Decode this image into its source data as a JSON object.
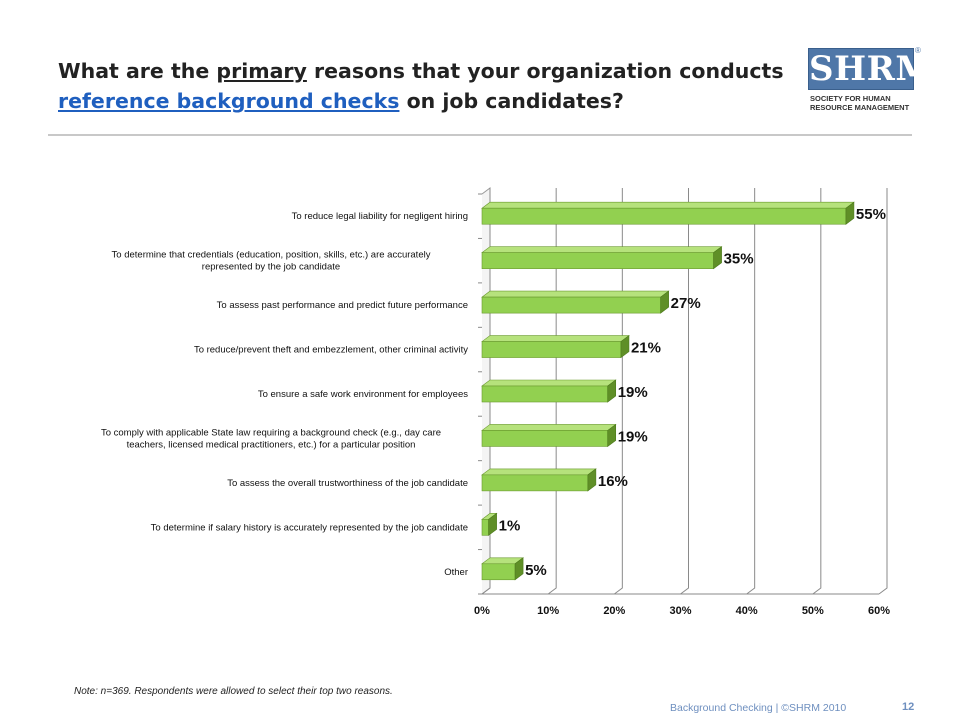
{
  "slide": {
    "title_pre": "What are the ",
    "title_em": "primary",
    "title_mid": " reasons that your organization conducts ",
    "title_link": "reference background checks",
    "title_post": " on job candidates?",
    "note": "Note: n=369. Respondents were allowed to select their top two reasons.",
    "footer": "Background Checking | ©SHRM 2010",
    "page_number": "12"
  },
  "logo": {
    "mark": "SHRM",
    "registered": "®",
    "line1": "SOCIETY FOR HUMAN",
    "line2": "RESOURCE MANAGEMENT",
    "color": "#4f77a8"
  },
  "chart_data": {
    "type": "bar",
    "orientation": "horizontal",
    "style": "3d",
    "bar_color": "#92d050",
    "grid": true,
    "xlim": [
      0,
      60
    ],
    "ticks": [
      "0%",
      "10%",
      "20%",
      "30%",
      "40%",
      "50%",
      "60%"
    ],
    "categories": [
      "To reduce legal liability for negligent hiring",
      "To determine that credentials (education, position, skills, etc.) are accurately represented by the job candidate",
      "To assess past performance and predict future performance",
      "To reduce/prevent theft and embezzlement, other criminal activity",
      "To ensure a safe work environment for employees",
      "To comply with applicable State law requiring a background check (e.g., day care teachers, licensed medical practitioners, etc.) for a particular position",
      "To assess the overall trustworthiness of the job candidate",
      "To determine if salary history is accurately represented by the job candidate",
      "Other"
    ],
    "category_lines": [
      [
        "To reduce legal liability for negligent hiring"
      ],
      [
        "To determine that credentials (education, position, skills, etc.) are accurately",
        "represented by the job candidate"
      ],
      [
        "To assess past performance and predict future performance"
      ],
      [
        "To reduce/prevent theft and embezzlement, other criminal activity"
      ],
      [
        "To ensure a safe work environment for employees"
      ],
      [
        "To comply with applicable State law requiring a background check (e.g., day care",
        "teachers, licensed medical practitioners, etc.) for a particular position"
      ],
      [
        "To assess the overall trustworthiness of the job candidate"
      ],
      [
        "To determine if salary history is accurately represented by the job candidate"
      ],
      [
        "Other"
      ]
    ],
    "values": [
      55,
      35,
      27,
      21,
      19,
      19,
      16,
      1,
      5
    ],
    "value_labels": [
      "55%",
      "35%",
      "27%",
      "21%",
      "19%",
      "19%",
      "16%",
      "1%",
      "5%"
    ]
  }
}
